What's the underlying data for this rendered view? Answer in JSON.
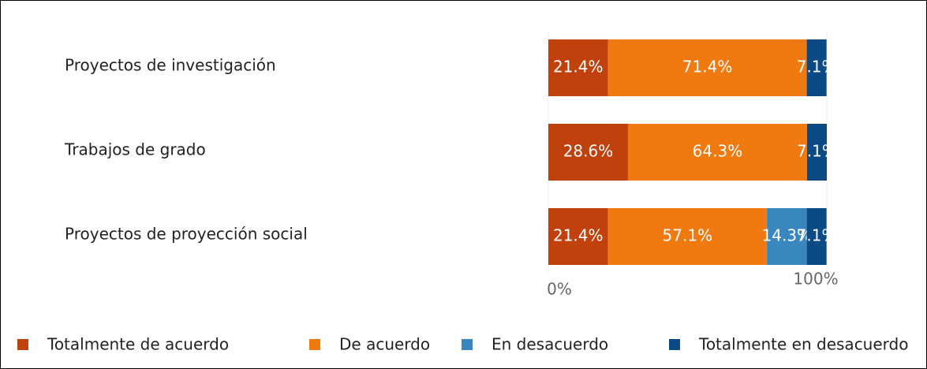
{
  "chart_data": {
    "type": "stacked-barh",
    "categories": [
      "Proyectos de investigación",
      "Trabajos de grado",
      "Proyectos de proyección social"
    ],
    "series": [
      {
        "name": "Totalmente de acuerdo",
        "color": "#c0410c",
        "values": [
          21.4,
          28.6,
          21.4
        ],
        "value_labels": [
          "21.4%",
          "28.6%",
          "21.4%"
        ]
      },
      {
        "name": "De acuerdo",
        "color": "#f07a10",
        "values": [
          71.4,
          64.3,
          57.1
        ],
        "value_labels": [
          "71.4%",
          "64.3%",
          "57.1%"
        ]
      },
      {
        "name": "En desacuerdo",
        "color": "#3a87c0",
        "values": [
          null,
          null,
          14.3
        ],
        "value_labels": [
          null,
          null,
          "14.3%"
        ]
      },
      {
        "name": "Totalmente en desacuerdo",
        "color": "#0c4a86",
        "values": [
          7.1,
          7.1,
          7.1
        ],
        "value_labels": [
          "7.1%",
          "7.1%",
          "7.1%"
        ]
      }
    ],
    "xlim": [
      0,
      100
    ],
    "xticks": [
      {
        "value": 0,
        "label": "0%"
      },
      {
        "value": 100,
        "label": "100%"
      }
    ],
    "legend": "bottom"
  }
}
